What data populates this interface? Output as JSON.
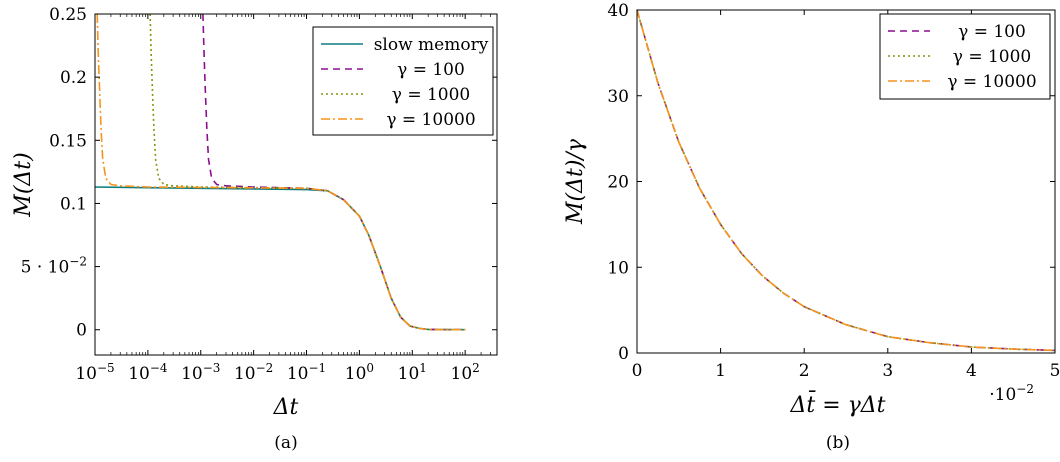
{
  "chart_data": [
    {
      "type": "line",
      "caption": "(a)",
      "xlabel": "Δt",
      "ylabel": "M(Δt)",
      "xscale": "log",
      "xlim": [
        1e-05,
        400
      ],
      "ylim": [
        -0.02,
        0.25
      ],
      "x_ticks": [
        {
          "value": 1e-05,
          "base": "10",
          "exp": "−5"
        },
        {
          "value": 0.0001,
          "base": "10",
          "exp": "−4"
        },
        {
          "value": 0.001,
          "base": "10",
          "exp": "−3"
        },
        {
          "value": 0.01,
          "base": "10",
          "exp": "−2"
        },
        {
          "value": 0.1,
          "base": "10",
          "exp": "−1"
        },
        {
          "value": 1,
          "base": "10",
          "exp": "0"
        },
        {
          "value": 10,
          "base": "10",
          "exp": "1"
        },
        {
          "value": 100,
          "base": "10",
          "exp": "2"
        }
      ],
      "y_ticks": [
        {
          "value": 0,
          "label": "0"
        },
        {
          "value": 0.05,
          "label": "5 · 10",
          "exp": "−2"
        },
        {
          "value": 0.1,
          "label": "0.1"
        },
        {
          "value": 0.15,
          "label": "0.15"
        },
        {
          "value": 0.2,
          "label": "0.2"
        },
        {
          "value": 0.25,
          "label": "0.25"
        }
      ],
      "legend_position": "top-right",
      "series": [
        {
          "name": "slow memory",
          "color": "#0e7d80",
          "dash": "solid",
          "x": [
            1e-05,
            0.001,
            0.1,
            0.25,
            0.5,
            1,
            1.5,
            2.5,
            4,
            6,
            9,
            14,
            20,
            30,
            100
          ],
          "y": [
            0.113,
            0.112,
            0.111,
            0.11,
            0.103,
            0.09,
            0.075,
            0.05,
            0.025,
            0.01,
            0.003,
            0.001,
            0.0003,
            0.0001,
            0.0
          ]
        },
        {
          "name": "γ = 100",
          "color": "#8b0f8f",
          "dash": "dashed",
          "x": [
            0.0011,
            0.00115,
            0.00122,
            0.0013,
            0.0014,
            0.0016,
            0.002,
            0.003,
            0.01,
            0.1,
            0.25,
            0.5,
            1,
            1.5,
            2.5,
            4,
            6,
            9,
            14,
            20,
            30,
            100
          ],
          "y": [
            0.25,
            0.22,
            0.19,
            0.16,
            0.135,
            0.12,
            0.115,
            0.114,
            0.113,
            0.112,
            0.11,
            0.103,
            0.09,
            0.075,
            0.05,
            0.025,
            0.01,
            0.003,
            0.001,
            0.0003,
            0.0001,
            0.0
          ]
        },
        {
          "name": "γ = 1000",
          "color": "#7c9a10",
          "dash": "dotted",
          "x": [
            0.00011,
            0.000115,
            0.000122,
            0.00013,
            0.00014,
            0.00016,
            0.0002,
            0.0003,
            0.001,
            0.1,
            0.25,
            0.5,
            1,
            1.5,
            2.5,
            4,
            6,
            9,
            14,
            20,
            30,
            100
          ],
          "y": [
            0.25,
            0.22,
            0.19,
            0.16,
            0.135,
            0.12,
            0.115,
            0.114,
            0.113,
            0.112,
            0.11,
            0.103,
            0.09,
            0.075,
            0.05,
            0.025,
            0.01,
            0.003,
            0.001,
            0.0003,
            0.0001,
            0.0
          ]
        },
        {
          "name": "γ = 10000",
          "color": "#f7941d",
          "dash": "dashdot",
          "x": [
            1.1e-05,
            1.15e-05,
            1.22e-05,
            1.3e-05,
            1.4e-05,
            1.6e-05,
            2e-05,
            3e-05,
            0.0001,
            0.1,
            0.25,
            0.5,
            1,
            1.5,
            2.5,
            4,
            6,
            9,
            14,
            20,
            30,
            100
          ],
          "y": [
            0.25,
            0.22,
            0.19,
            0.16,
            0.135,
            0.12,
            0.115,
            0.114,
            0.113,
            0.112,
            0.11,
            0.103,
            0.09,
            0.075,
            0.05,
            0.025,
            0.01,
            0.003,
            0.001,
            0.0003,
            0.0001,
            0.0
          ]
        }
      ]
    },
    {
      "type": "line",
      "caption": "(b)",
      "xlabel": "Δt̄ = γΔt",
      "ylabel": "M(Δt)/γ",
      "xscale": "linear",
      "xlim": [
        0,
        0.05
      ],
      "ylim": [
        0,
        40
      ],
      "x_multiplier": {
        "base": "·10",
        "exp": "−2"
      },
      "x_ticks": [
        {
          "value": 0,
          "label": "0"
        },
        {
          "value": 0.01,
          "label": "1"
        },
        {
          "value": 0.02,
          "label": "2"
        },
        {
          "value": 0.03,
          "label": "3"
        },
        {
          "value": 0.04,
          "label": "4"
        },
        {
          "value": 0.05,
          "label": "5"
        }
      ],
      "y_ticks": [
        {
          "value": 0,
          "label": "0"
        },
        {
          "value": 10,
          "label": "10"
        },
        {
          "value": 20,
          "label": "20"
        },
        {
          "value": 30,
          "label": "30"
        },
        {
          "value": 40,
          "label": "40"
        }
      ],
      "legend_position": "top-right",
      "series": [
        {
          "name": "γ = 100",
          "color": "#8b0f8f",
          "dash": "dashed",
          "x": [
            0,
            0.0025,
            0.005,
            0.0075,
            0.01,
            0.0125,
            0.015,
            0.0175,
            0.02,
            0.025,
            0.03,
            0.035,
            0.04,
            0.045,
            0.05
          ],
          "y": [
            40,
            31.5,
            24.6,
            19.2,
            15.0,
            11.6,
            9.0,
            7.0,
            5.4,
            3.3,
            1.9,
            1.2,
            0.7,
            0.45,
            0.3
          ]
        },
        {
          "name": "γ = 1000",
          "color": "#7c9a10",
          "dash": "dotted",
          "x": [
            0,
            0.0025,
            0.005,
            0.0075,
            0.01,
            0.0125,
            0.015,
            0.0175,
            0.02,
            0.025,
            0.03,
            0.035,
            0.04,
            0.045,
            0.05
          ],
          "y": [
            40,
            31.5,
            24.6,
            19.2,
            15.0,
            11.6,
            9.0,
            7.0,
            5.4,
            3.3,
            1.9,
            1.2,
            0.7,
            0.45,
            0.3
          ]
        },
        {
          "name": "γ = 10000",
          "color": "#f7941d",
          "dash": "dashdot",
          "x": [
            0,
            0.0025,
            0.005,
            0.0075,
            0.01,
            0.0125,
            0.015,
            0.0175,
            0.02,
            0.025,
            0.03,
            0.035,
            0.04,
            0.045,
            0.05
          ],
          "y": [
            40,
            31.5,
            24.6,
            19.2,
            15.0,
            11.6,
            9.0,
            7.0,
            5.4,
            3.3,
            1.9,
            1.2,
            0.7,
            0.45,
            0.3
          ]
        }
      ]
    }
  ]
}
